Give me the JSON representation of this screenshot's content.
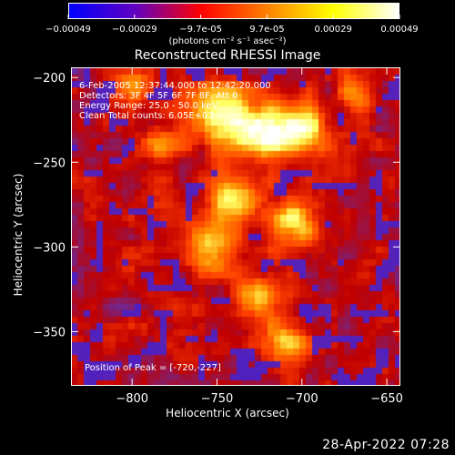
{
  "colorbar": {
    "tick_labels": [
      "-0.00049",
      "-0.00029",
      "-9.7e-05",
      "9.7e-05",
      "0.00029",
      "0.00049"
    ],
    "units": "(photons cm⁻² s⁻¹ asec⁻²)",
    "colors": [
      "#0000ff",
      "#6000c0",
      "#ff0000",
      "#ff8000",
      "#ffff00",
      "#ffffff"
    ]
  },
  "overlay": {
    "line1": "6-Feb-2005 12:37:44.000 to 12:42:20.000",
    "line2": "Detectors: 3F 4F 5F 6F 7F 8F, Att 0",
    "line3": "Energy Range: 25.0 - 50.0 keV",
    "line4": "Clean     Total counts: 6.05E+03",
    "peak": "Position of Peak = [-720,-227]"
  },
  "footer": {
    "date": "28-Apr-2022 07:28"
  },
  "chart_data": {
    "type": "heatmap",
    "title": "Reconstructed RHESSI Image",
    "xlabel": "Heliocentric X (arcsec)",
    "ylabel": "Heliocentric Y (arcsec)",
    "xlim": [
      -836,
      -642
    ],
    "ylim": [
      -382,
      -194
    ],
    "x_ticks": [
      -800,
      -750,
      -700,
      -650
    ],
    "y_ticks": [
      -200,
      -250,
      -300,
      -350
    ],
    "x_tick_labels": [
      "−800",
      "−750",
      "−700",
      "−650"
    ],
    "y_tick_labels": [
      "−200",
      "−250",
      "−300",
      "−350"
    ],
    "peak": [
      -720,
      -227
    ],
    "colorscale": [
      "#0000ff",
      "#5020c0",
      "#6a2a9a",
      "#c00000",
      "#ff4000",
      "#ff9000",
      "#ffff60",
      "#ffffff"
    ],
    "emission_regions": [
      {
        "x": -748,
        "y": -222,
        "r": 18,
        "amp": 0.9
      },
      {
        "x": -722,
        "y": -232,
        "r": 16,
        "amp": 1.0
      },
      {
        "x": -698,
        "y": -230,
        "r": 14,
        "amp": 0.8
      },
      {
        "x": -740,
        "y": -272,
        "r": 14,
        "amp": 0.75
      },
      {
        "x": -755,
        "y": -300,
        "r": 16,
        "amp": 0.8
      },
      {
        "x": -705,
        "y": -285,
        "r": 14,
        "amp": 0.8
      },
      {
        "x": -725,
        "y": -330,
        "r": 14,
        "amp": 0.7
      },
      {
        "x": -708,
        "y": -355,
        "r": 13,
        "amp": 0.6
      },
      {
        "x": -785,
        "y": -240,
        "r": 12,
        "amp": 0.55
      },
      {
        "x": -668,
        "y": -210,
        "r": 11,
        "amp": 0.55
      },
      {
        "x": -800,
        "y": -205,
        "r": 9,
        "amp": 0.5
      }
    ]
  }
}
